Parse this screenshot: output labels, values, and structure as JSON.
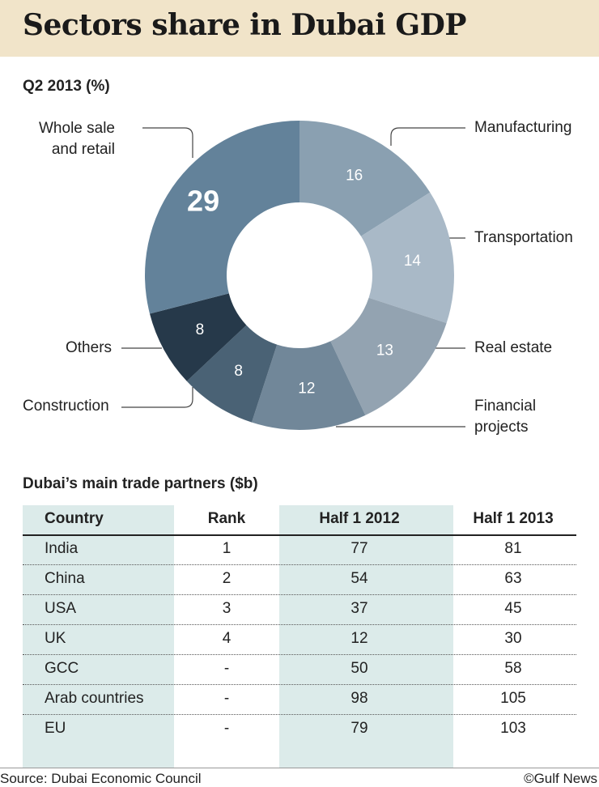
{
  "title": "Sectors share in Dubai GDP",
  "chart_data": [
    {
      "type": "pie",
      "donut": true,
      "title": "Q2 2013 (%)",
      "categories": [
        "Manufacturing",
        "Transportation",
        "Real estate",
        "Financial projects",
        "Construction",
        "Others",
        "Whole sale and retail"
      ],
      "values": [
        16,
        14,
        13,
        12,
        8,
        8,
        29
      ],
      "colors": [
        "#8aa0b1",
        "#a9b9c7",
        "#93a3b1",
        "#718799",
        "#4a6275",
        "#26394a",
        "#63829a"
      ]
    },
    {
      "type": "table",
      "title": "Dubai’s main trade partners ($b)",
      "columns": [
        "Country",
        "Rank",
        "Half 1 2012",
        "Half 1 2013"
      ],
      "rows": [
        [
          "India",
          "1",
          "77",
          "81"
        ],
        [
          "China",
          "2",
          "54",
          "63"
        ],
        [
          "USA",
          "3",
          "37",
          "45"
        ],
        [
          "UK",
          "4",
          "12",
          "30"
        ],
        [
          "GCC",
          "-",
          "50",
          "58"
        ],
        [
          "Arab countries",
          "-",
          "98",
          "105"
        ],
        [
          "EU",
          "-",
          "79",
          "103"
        ]
      ]
    }
  ],
  "labels": {
    "manufacturing": "Manufacturing",
    "transportation": "Transportation",
    "real_estate": "Real estate",
    "financial_1": "Financial",
    "financial_2": "projects",
    "construction": "Construction",
    "others": "Others",
    "wholesale_1": "Whole sale",
    "wholesale_2": "and retail"
  },
  "footer": {
    "source": "Source: Dubai Economic Council",
    "credit": "©Gulf News"
  }
}
